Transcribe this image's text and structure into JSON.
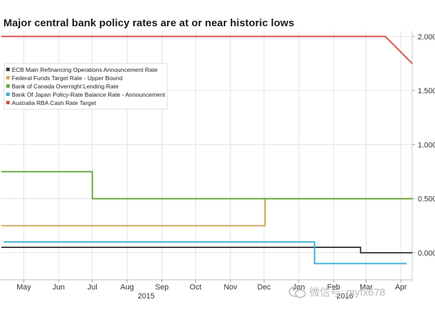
{
  "chart_data": {
    "type": "line",
    "title": "Major central bank policy rates are at or near historic lows",
    "x_range": [
      "2015-04-25",
      "2016-04-25"
    ],
    "x_ticks": [
      {
        "label": "May",
        "date": "2015-05-15"
      },
      {
        "label": "Jun",
        "date": "2015-06-15"
      },
      {
        "label": "Jul",
        "date": "2015-07-15"
      },
      {
        "label": "Aug",
        "date": "2015-08-15"
      },
      {
        "label": "Sep",
        "date": "2015-09-15"
      },
      {
        "label": "Oct",
        "date": "2015-10-15"
      },
      {
        "label": "Nov",
        "date": "2015-11-15"
      },
      {
        "label": "Dec",
        "date": "2015-12-15"
      },
      {
        "label": "Jan",
        "date": "2016-01-15"
      },
      {
        "label": "Feb",
        "date": "2016-02-15"
      },
      {
        "label": "Mar",
        "date": "2016-03-15"
      },
      {
        "label": "Apr",
        "date": "2016-04-15"
      }
    ],
    "year_labels": [
      {
        "label": "2015",
        "date": "2015-09-01"
      },
      {
        "label": "2016",
        "date": "2016-02-25"
      }
    ],
    "ylim": [
      -0.25,
      2.05
    ],
    "y_ticks": [
      2.0,
      1.5,
      1.0,
      0.5,
      0.0
    ],
    "y_tick_labels": [
      "2.000",
      "1.500",
      "1.000",
      "0.500",
      "0.000"
    ],
    "grid": true,
    "legend_position": "top-left",
    "series": [
      {
        "name": "ECB Main Refinancing Operations Announcement Rate",
        "color": "#3c3c3c",
        "points": [
          [
            "2015-04-25",
            0.05
          ],
          [
            "2016-03-10",
            0.05
          ],
          [
            "2016-03-10",
            0.0
          ],
          [
            "2016-04-25",
            0.0
          ]
        ]
      },
      {
        "name": "Federal Funds Target Rate - Upper Bound",
        "color": "#d9a95b",
        "points": [
          [
            "2015-04-25",
            0.25
          ],
          [
            "2015-12-16",
            0.25
          ],
          [
            "2015-12-16",
            0.5
          ],
          [
            "2016-04-25",
            0.5
          ]
        ]
      },
      {
        "name": "Bank of Canada Overnight Lending Rate",
        "color": "#66a83e",
        "points": [
          [
            "2015-04-25",
            0.75
          ],
          [
            "2015-07-15",
            0.75
          ],
          [
            "2015-07-15",
            0.5
          ],
          [
            "2016-04-25",
            0.5
          ]
        ]
      },
      {
        "name": "Bank Of Japan Policy-Rate Balance Rate - Announcement",
        "color": "#3bb0d6",
        "points": [
          [
            "2015-04-27",
            0.1
          ],
          [
            "2016-01-29",
            0.1
          ],
          [
            "2016-01-29",
            -0.1
          ],
          [
            "2016-04-20",
            -0.1
          ]
        ]
      },
      {
        "name": "Australia RBA Cash Rate Target",
        "color": "#d9514e",
        "points": [
          [
            "2015-04-25",
            2.0
          ],
          [
            "2016-04-01",
            2.0
          ],
          [
            "2016-04-25",
            1.75
          ]
        ]
      }
    ]
  },
  "watermark": {
    "text": "微信号: myfx678",
    "icon": "wechat-icon"
  }
}
